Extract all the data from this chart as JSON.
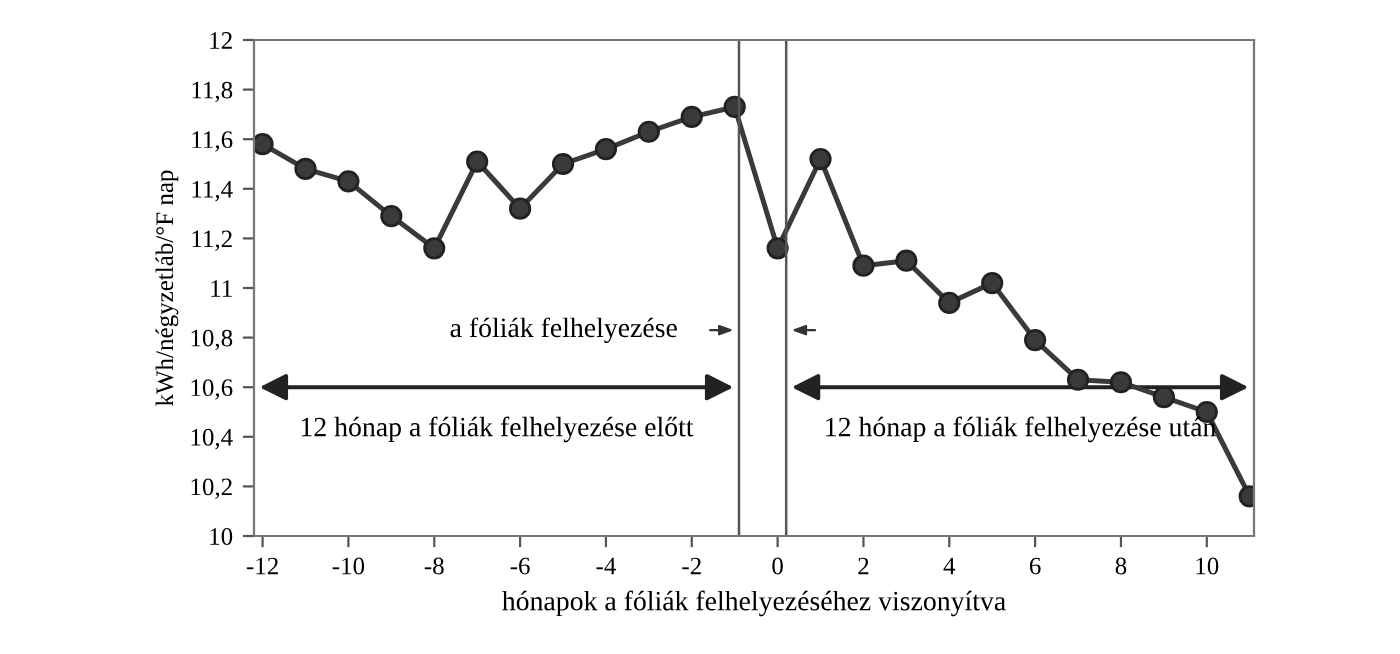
{
  "chart_data": {
    "type": "line",
    "xlabel": "hónapok a fóliák felhelyezéséhez viszonyítva",
    "ylabel": "kWh/négyzetláb/°F nap",
    "xlim": [
      -12.2,
      11.1
    ],
    "ylim": [
      10,
      12
    ],
    "xticks": [
      -12,
      -10,
      -8,
      -6,
      -4,
      -2,
      0,
      2,
      4,
      6,
      8,
      10
    ],
    "yticks": [
      {
        "value": 10,
        "label": "10"
      },
      {
        "value": 10.2,
        "label": "10,2"
      },
      {
        "value": 10.4,
        "label": "10,4"
      },
      {
        "value": 10.6,
        "label": "10,6"
      },
      {
        "value": 10.8,
        "label": "10,8"
      },
      {
        "value": 11,
        "label": "11"
      },
      {
        "value": 11.2,
        "label": "11,2"
      },
      {
        "value": 11.4,
        "label": "11,4"
      },
      {
        "value": 11.6,
        "label": "11,6"
      },
      {
        "value": 11.8,
        "label": "11,8"
      },
      {
        "value": 12,
        "label": "12"
      }
    ],
    "x": [
      -12,
      -11,
      -10,
      -9,
      -8,
      -7,
      -6,
      -5,
      -4,
      -3,
      -2,
      -1,
      0,
      1,
      2,
      3,
      4,
      5,
      6,
      7,
      8,
      9,
      10,
      11
    ],
    "series": [
      {
        "color": "#3a3a3a",
        "values": [
          11.58,
          11.48,
          11.43,
          11.29,
          11.16,
          11.51,
          11.32,
          11.5,
          11.56,
          11.63,
          11.69,
          11.73,
          11.16,
          11.52,
          11.09,
          11.11,
          10.94,
          11.02,
          10.79,
          10.63,
          10.62,
          10.56,
          10.5,
          10.16
        ]
      }
    ],
    "marker": "circle",
    "line_style": "solid",
    "grid": false,
    "legend": false,
    "ref_lines": [
      {
        "axis": "x",
        "value": -0.9,
        "color": "#555555"
      },
      {
        "axis": "x",
        "value": 0.2,
        "color": "#555555"
      }
    ],
    "annotations": [
      "12 hónap a fóliák felhelyezése előtt",
      "12 hónap a fóliák felhelyezése után",
      {
        "text": "a fóliák felhelyezése",
        "x": -0.9,
        "y": 10.83
      }
    ]
  }
}
